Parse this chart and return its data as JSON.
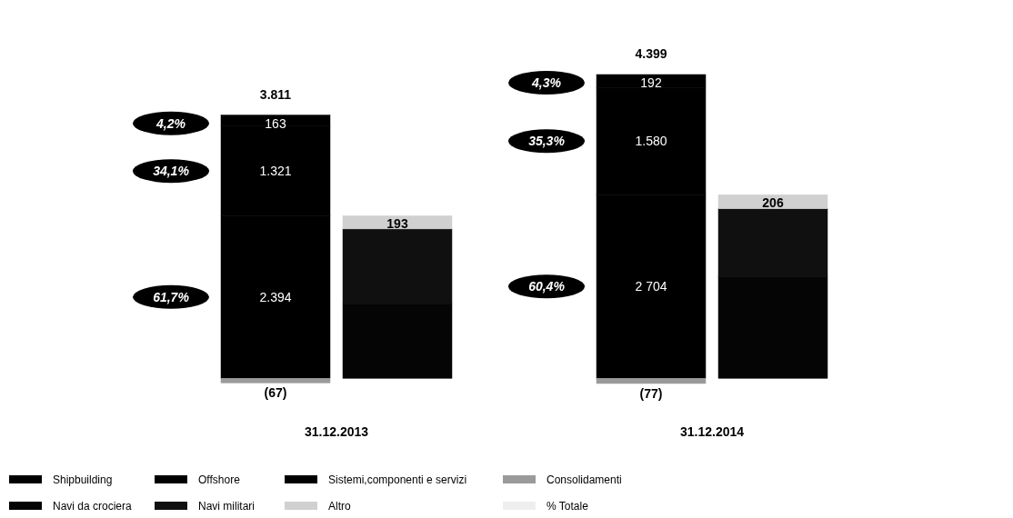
{
  "chart_data": {
    "type": "bar",
    "stacked": true,
    "categories": [
      null,
      null,
      null,
      null
    ],
    "series": [
      {
        "name": "Shipbuilding",
        "color": "#000000",
        "values": [
          2394,
          null,
          2704,
          null
        ],
        "value_labels": [
          "2.394",
          null,
          "2 704",
          null
        ]
      },
      {
        "name": "Offshore",
        "color": "#000000",
        "values": [
          1321,
          null,
          1580,
          null
        ],
        "value_labels": [
          "1.321",
          null,
          "1.580",
          null
        ]
      },
      {
        "name": "Sistemi,componenti e servizi",
        "color": "#000000",
        "values": [
          163,
          null,
          192,
          null
        ],
        "value_labels": [
          "163",
          null,
          "192",
          null
        ]
      },
      {
        "name": "Consolidamenti",
        "color": "#9a9a9a",
        "values": [
          -67,
          null,
          -77,
          null
        ],
        "value_labels": [
          "(67)",
          null,
          "(77)",
          null
        ]
      },
      {
        "name": "Navi da crociera",
        "color": "#050505",
        "values": [
          null,
          1100,
          null,
          1500
        ]
      },
      {
        "name": "Navi militari",
        "color": "#101010",
        "values": [
          null,
          1101,
          null,
          998
        ]
      },
      {
        "name": "Altro",
        "color": "#d0d0d0",
        "values": [
          null,
          193,
          null,
          206
        ],
        "value_labels": [
          null,
          "193",
          null,
          "206"
        ]
      },
      {
        "name": "% Totale",
        "color": "#eeeeee",
        "values": [
          null,
          null,
          null,
          null
        ]
      }
    ],
    "totals": [
      "3.811",
      null,
      "4.399",
      null
    ],
    "legend": "bottom",
    "annotations": [
      "31.12.2013",
      "31.12.2014",
      "4,2%",
      "34,1%",
      "61,7%",
      "4,3%",
      "35,3%",
      "60,4%"
    ]
  }
}
